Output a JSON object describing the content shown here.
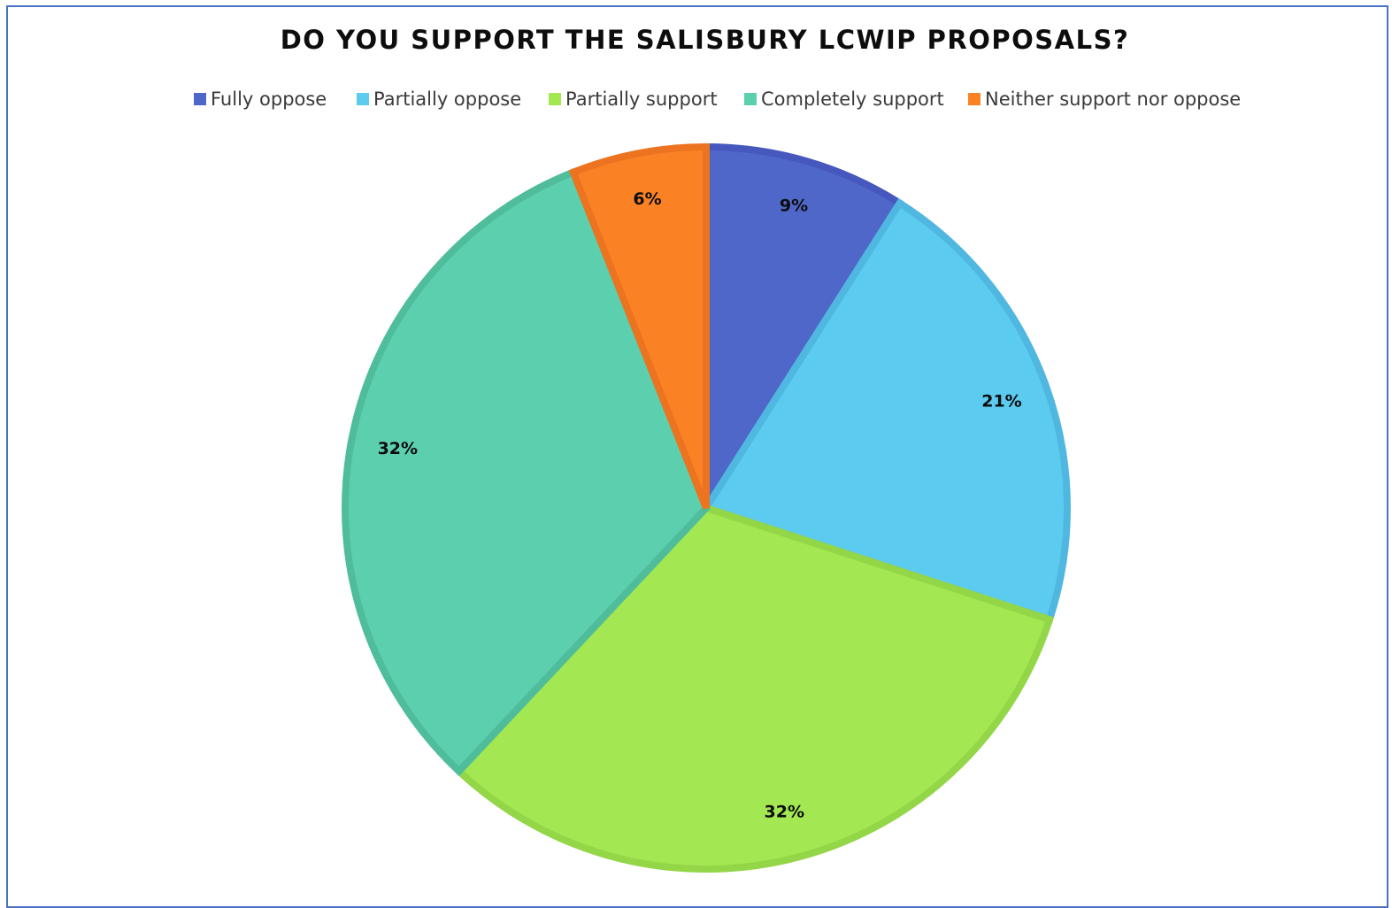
{
  "chart_data": {
    "type": "pie",
    "title": "DO YOU SUPPORT THE SALISBURY LCWIP PROPOSALS?",
    "legend_position": "top",
    "categories": [
      "Fully oppose",
      "Partially oppose",
      "Partially support",
      "Completely support",
      "Neither support nor oppose"
    ],
    "values": [
      9,
      21,
      32,
      32,
      6
    ],
    "data_labels": [
      "9%",
      "21%",
      "32%",
      "32%",
      "6%"
    ],
    "colors": [
      "#4f67c8",
      "#5ccbf0",
      "#a3e852",
      "#5ccfae",
      "#fb8224"
    ],
    "border_colors": [
      "#4658be",
      "#4fb7e0",
      "#93d647",
      "#4fbd9b",
      "#ec7420"
    ]
  }
}
